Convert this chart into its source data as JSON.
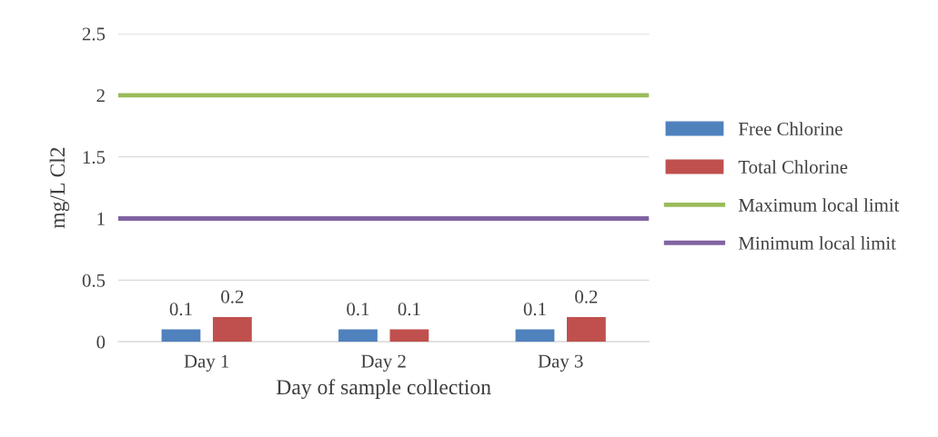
{
  "chart_data": {
    "type": "bar",
    "xlabel": "Day of sample collection",
    "ylabel": "mg/L Cl2",
    "categories": [
      "Day 1",
      "Day 2",
      "Day 3"
    ],
    "series": [
      {
        "name": "Free Chlorine",
        "color": "#4f81bd",
        "values": [
          0.1,
          0.1,
          0.1
        ]
      },
      {
        "name": "Total Chlorine",
        "color": "#c0504d",
        "values": [
          0.2,
          0.1,
          0.2
        ]
      }
    ],
    "ref_lines": [
      {
        "axis": "y",
        "value": 2,
        "label": "Maximum local limit",
        "color": "#9bbb59"
      },
      {
        "axis": "y",
        "value": 1,
        "label": "Minimum local limit",
        "color": "#8064a2"
      }
    ],
    "ylim": [
      0,
      2.5
    ],
    "yticks": [
      0,
      0.5,
      1,
      1.5,
      2,
      2.5
    ],
    "grid": "y",
    "legend": "right",
    "data_labels": true
  }
}
